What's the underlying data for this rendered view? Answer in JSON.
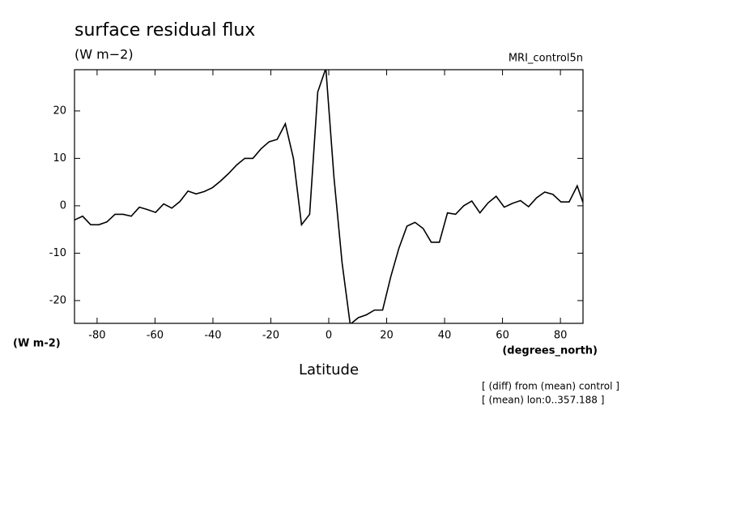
{
  "chart_data": {
    "type": "line",
    "title": "surface residual flux",
    "subtitle": "(W m−2)",
    "dataset": "MRI_control5n",
    "y_axis_label": "(W m-2)",
    "x_units": "(degrees_north)",
    "x_axis_label": "Latitude",
    "annotations": [
      "[ (diff) from (mean) control ]",
      "[ (mean) lon:0..357.188 ]"
    ],
    "x": [
      -87.8,
      -85,
      -82.2,
      -79.4,
      -76.6,
      -73.8,
      -71,
      -68.2,
      -65.4,
      -62.6,
      -59.8,
      -57,
      -54.2,
      -51.4,
      -48.6,
      -45.8,
      -43,
      -40.2,
      -37.4,
      -34.6,
      -31.8,
      -29,
      -26.2,
      -23.4,
      -20.6,
      -17.8,
      -15,
      -12.2,
      -9.4,
      -6.6,
      -3.8,
      -1,
      1.8,
      4.6,
      7.4,
      10.2,
      13,
      15.8,
      18.6,
      21.4,
      24.2,
      27,
      29.8,
      32.6,
      35.4,
      38.2,
      41,
      43.8,
      46.6,
      49.4,
      52.2,
      55,
      57.8,
      60.6,
      63.4,
      66.2,
      69,
      71.8,
      74.6,
      77.4,
      80.2,
      83,
      85.8,
      87.8
    ],
    "series": [
      {
        "color": "#000000",
        "values": [
          -3,
          -2.2,
          -4,
          -4,
          -3.4,
          -1.8,
          -1.8,
          -2.2,
          -0.3,
          -0.8,
          -1.4,
          0.4,
          -0.5,
          0.9,
          3.1,
          2.5,
          3,
          3.8,
          5.2,
          6.8,
          8.6,
          10,
          10,
          12,
          13.5,
          14,
          17.3,
          10,
          -4,
          -1.8,
          24,
          29,
          6,
          -12,
          -25,
          -23.6,
          -23,
          -22,
          -22,
          -15,
          -9,
          -4.3,
          -3.5,
          -4.8,
          -7.7,
          -7.7,
          -1.5,
          -1.8,
          0,
          1,
          -1.5,
          0.6,
          2,
          -0.3,
          0.5,
          1.1,
          -0.2,
          1.7,
          2.9,
          2.4,
          0.8,
          0.8,
          4.2,
          0.7
        ]
      }
    ],
    "xlim": [
      -87.8,
      87.8
    ],
    "xticks": [
      -80,
      -60,
      -40,
      -20,
      0,
      20,
      40,
      60,
      80
    ],
    "ylim": [
      -24.8,
      28.7
    ],
    "yticks": [
      -20,
      -10,
      0,
      10,
      20
    ]
  }
}
